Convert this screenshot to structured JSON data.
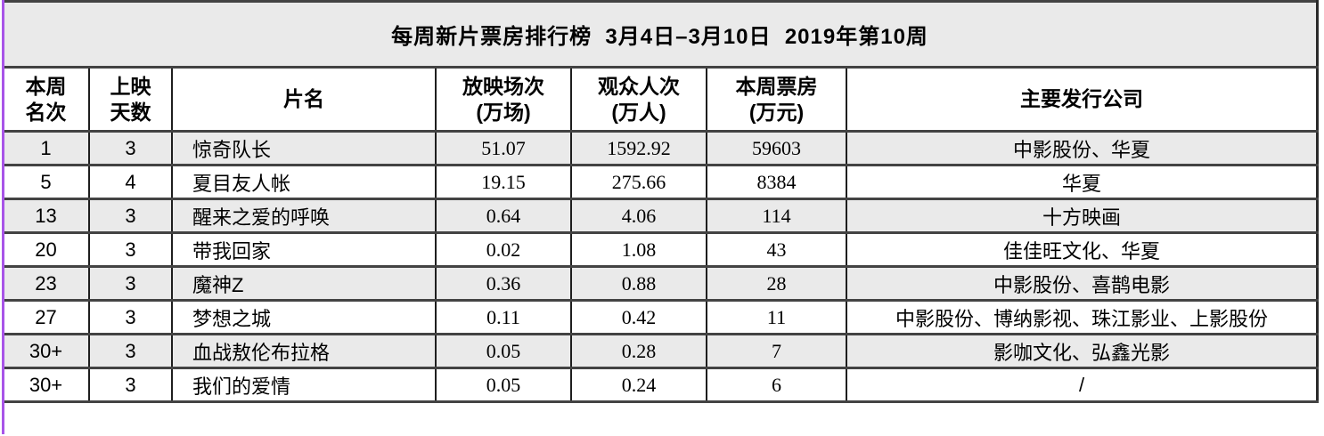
{
  "colors": {
    "row_stripe": "#eaeaea",
    "grid_horizontal": "#434343",
    "grid_vertical": "#1e1e1e",
    "page_left_edge": "#a855e8",
    "text": "#000000",
    "background": "#ffffff"
  },
  "table": {
    "title": "每周新片票房排行榜  3月4日–3月10日  2019年第10周",
    "columns": [
      "本周\n名次",
      "上映\n天数",
      "片名",
      "放映场次\n(万场)",
      "观众人次\n(万人)",
      "本周票房\n(万元)",
      "主要发行公司"
    ],
    "rows": [
      [
        "1",
        "3",
        "惊奇队长",
        "51.07",
        "1592.92",
        "59603",
        "中影股份、华夏"
      ],
      [
        "5",
        "4",
        "夏目友人帐",
        "19.15",
        "275.66",
        "8384",
        "华夏"
      ],
      [
        "13",
        "3",
        "醒来之爱的呼唤",
        "0.64",
        "4.06",
        "114",
        "十方映画"
      ],
      [
        "20",
        "3",
        "带我回家",
        "0.02",
        "1.08",
        "43",
        "佳佳旺文化、华夏"
      ],
      [
        "23",
        "3",
        "魔神Z",
        "0.36",
        "0.88",
        "28",
        "中影股份、喜鹊电影"
      ],
      [
        "27",
        "3",
        "梦想之城",
        "0.11",
        "0.42",
        "11",
        "中影股份、博纳影视、珠江影业、上影股份"
      ],
      [
        "30+",
        "3",
        "血战敖伦布拉格",
        "0.05",
        "0.28",
        "7",
        "影咖文化、弘鑫光影"
      ],
      [
        "30+",
        "3",
        "我们的爱情",
        "0.05",
        "0.24",
        "6",
        "/"
      ]
    ]
  }
}
